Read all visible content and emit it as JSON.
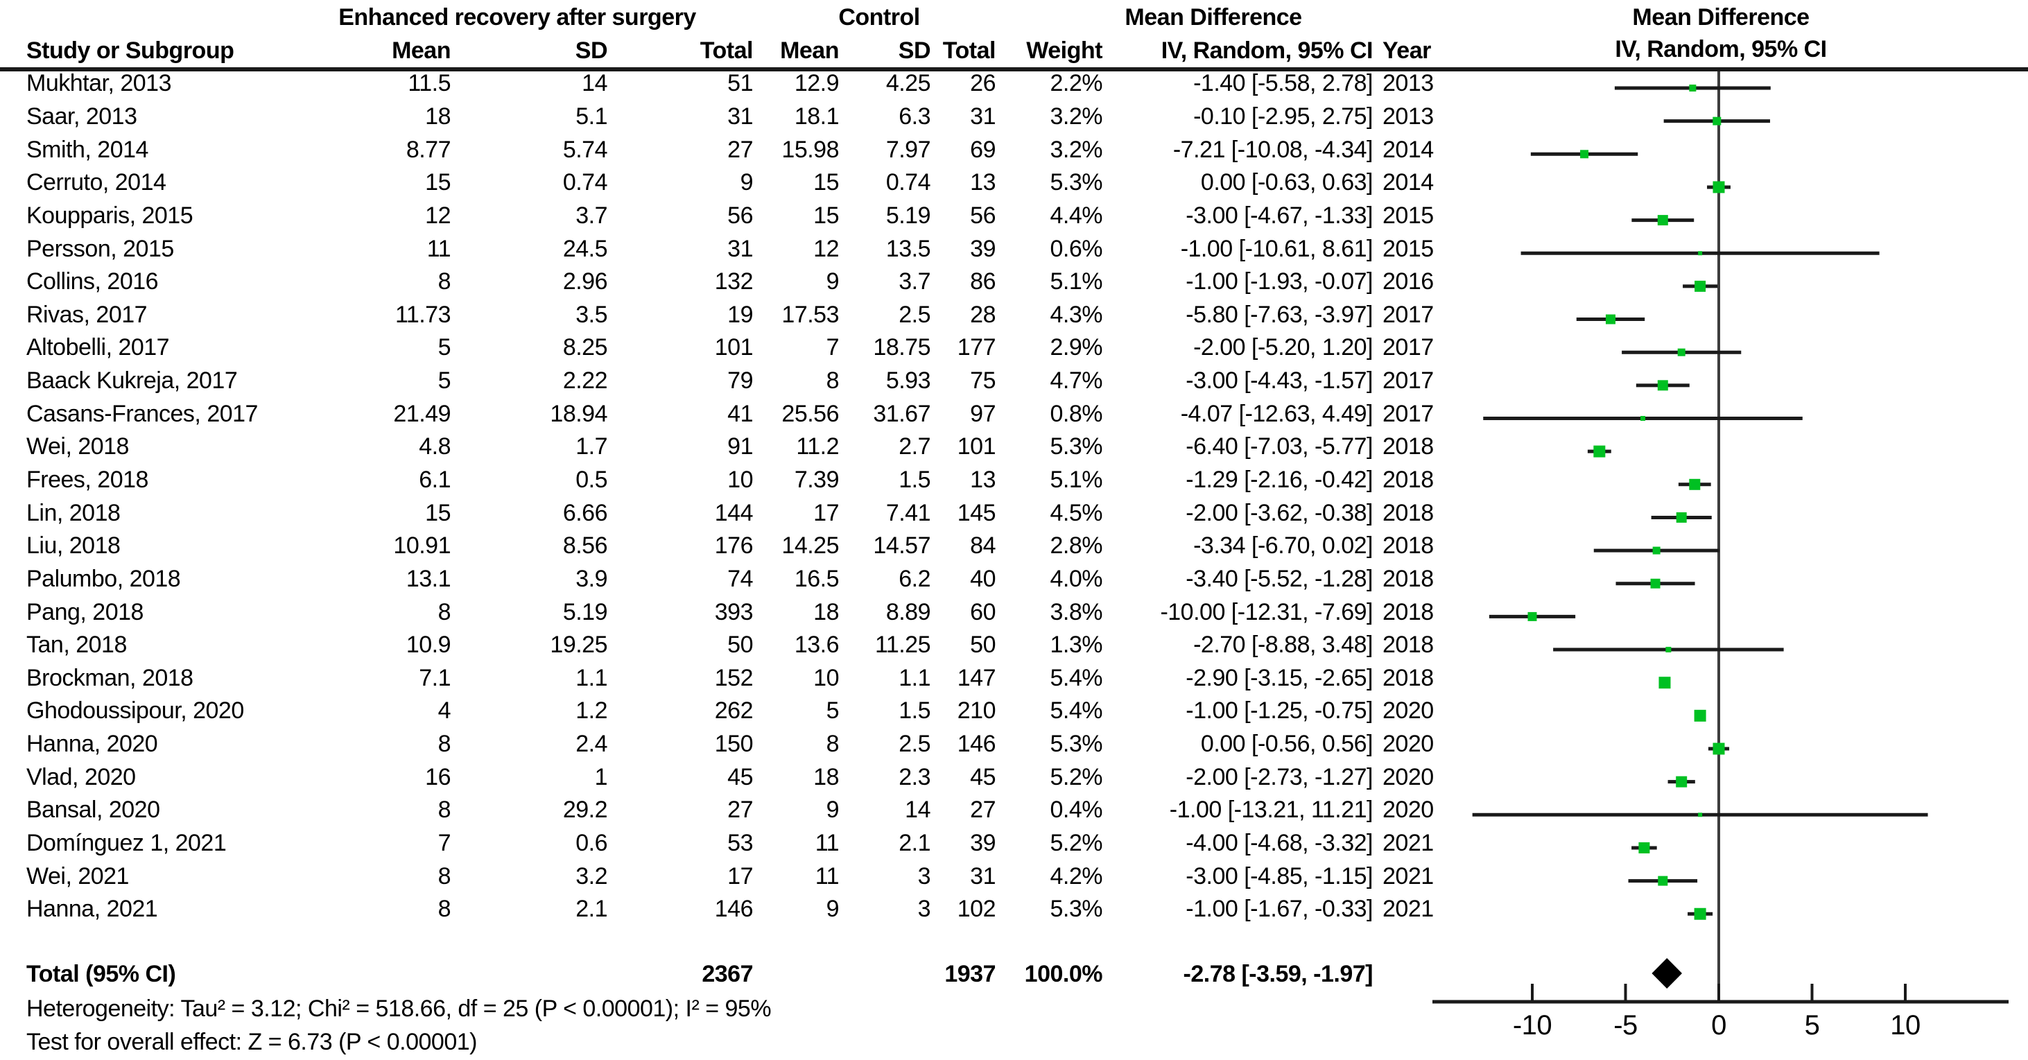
{
  "header": {
    "group_experimental": "Enhanced recovery after surgery",
    "group_control": "Control",
    "md_text_col_title": "Mean Difference",
    "md_plot_col_title": "Mean Difference",
    "md_plot_col_subtitle": "IV, Random, 95% CI",
    "col_study": "Study or Subgroup",
    "col_mean1": "Mean",
    "col_sd1": "SD",
    "col_total1": "Total",
    "col_mean2": "Mean",
    "col_sd2": "SD",
    "col_total2": "Total",
    "col_weight": "Weight",
    "col_ci": "IV, Random, 95% CI",
    "col_year": "Year"
  },
  "chart_data": {
    "type": "forest",
    "effect_measure": "Mean Difference, IV, Random, 95% CI",
    "axis": {
      "ticks": [
        -10,
        -5,
        0,
        5,
        10
      ],
      "zero_line": 0
    },
    "studies": [
      {
        "study": "Mukhtar, 2013",
        "mean1": "11.5",
        "sd1": "14",
        "total1": "51",
        "mean2": "12.9",
        "sd2": "4.25",
        "total2": "26",
        "weight": "2.2%",
        "ci_text": "-1.40 [-5.58, 2.78]",
        "year": "2013",
        "md": -1.4,
        "lo": -5.58,
        "hi": 2.78,
        "weight_pct": 2.2
      },
      {
        "study": "Saar, 2013",
        "mean1": "18",
        "sd1": "5.1",
        "total1": "31",
        "mean2": "18.1",
        "sd2": "6.3",
        "total2": "31",
        "weight": "3.2%",
        "ci_text": "-0.10 [-2.95, 2.75]",
        "year": "2013",
        "md": -0.1,
        "lo": -2.95,
        "hi": 2.75,
        "weight_pct": 3.2
      },
      {
        "study": "Smith, 2014",
        "mean1": "8.77",
        "sd1": "5.74",
        "total1": "27",
        "mean2": "15.98",
        "sd2": "7.97",
        "total2": "69",
        "weight": "3.2%",
        "ci_text": "-7.21 [-10.08, -4.34]",
        "year": "2014",
        "md": -7.21,
        "lo": -10.08,
        "hi": -4.34,
        "weight_pct": 3.2
      },
      {
        "study": "Cerruto, 2014",
        "mean1": "15",
        "sd1": "0.74",
        "total1": "9",
        "mean2": "15",
        "sd2": "0.74",
        "total2": "13",
        "weight": "5.3%",
        "ci_text": "0.00 [-0.63, 0.63]",
        "year": "2014",
        "md": 0.0,
        "lo": -0.63,
        "hi": 0.63,
        "weight_pct": 5.3
      },
      {
        "study": "Koupparis, 2015",
        "mean1": "12",
        "sd1": "3.7",
        "total1": "56",
        "mean2": "15",
        "sd2": "5.19",
        "total2": "56",
        "weight": "4.4%",
        "ci_text": "-3.00 [-4.67, -1.33]",
        "year": "2015",
        "md": -3.0,
        "lo": -4.67,
        "hi": -1.33,
        "weight_pct": 4.4
      },
      {
        "study": "Persson, 2015",
        "mean1": "11",
        "sd1": "24.5",
        "total1": "31",
        "mean2": "12",
        "sd2": "13.5",
        "total2": "39",
        "weight": "0.6%",
        "ci_text": "-1.00 [-10.61, 8.61]",
        "year": "2015",
        "md": -1.0,
        "lo": -10.61,
        "hi": 8.61,
        "weight_pct": 0.6
      },
      {
        "study": "Collins, 2016",
        "mean1": "8",
        "sd1": "2.96",
        "total1": "132",
        "mean2": "9",
        "sd2": "3.7",
        "total2": "86",
        "weight": "5.1%",
        "ci_text": "-1.00 [-1.93, -0.07]",
        "year": "2016",
        "md": -1.0,
        "lo": -1.93,
        "hi": -0.07,
        "weight_pct": 5.1
      },
      {
        "study": "Rivas, 2017",
        "mean1": "11.73",
        "sd1": "3.5",
        "total1": "19",
        "mean2": "17.53",
        "sd2": "2.5",
        "total2": "28",
        "weight": "4.3%",
        "ci_text": "-5.80 [-7.63, -3.97]",
        "year": "2017",
        "md": -5.8,
        "lo": -7.63,
        "hi": -3.97,
        "weight_pct": 4.3
      },
      {
        "study": "Altobelli, 2017",
        "mean1": "5",
        "sd1": "8.25",
        "total1": "101",
        "mean2": "7",
        "sd2": "18.75",
        "total2": "177",
        "weight": "2.9%",
        "ci_text": "-2.00 [-5.20, 1.20]",
        "year": "2017",
        "md": -2.0,
        "lo": -5.2,
        "hi": 1.2,
        "weight_pct": 2.9
      },
      {
        "study": "Baack Kukreja, 2017",
        "mean1": "5",
        "sd1": "2.22",
        "total1": "79",
        "mean2": "8",
        "sd2": "5.93",
        "total2": "75",
        "weight": "4.7%",
        "ci_text": "-3.00 [-4.43, -1.57]",
        "year": "2017",
        "md": -3.0,
        "lo": -4.43,
        "hi": -1.57,
        "weight_pct": 4.7
      },
      {
        "study": "Casans-Frances, 2017",
        "mean1": "21.49",
        "sd1": "18.94",
        "total1": "41",
        "mean2": "25.56",
        "sd2": "31.67",
        "total2": "97",
        "weight": "0.8%",
        "ci_text": "-4.07 [-12.63, 4.49]",
        "year": "2017",
        "md": -4.07,
        "lo": -12.63,
        "hi": 4.49,
        "weight_pct": 0.8
      },
      {
        "study": "Wei, 2018",
        "mean1": "4.8",
        "sd1": "1.7",
        "total1": "91",
        "mean2": "11.2",
        "sd2": "2.7",
        "total2": "101",
        "weight": "5.3%",
        "ci_text": "-6.40 [-7.03, -5.77]",
        "year": "2018",
        "md": -6.4,
        "lo": -7.03,
        "hi": -5.77,
        "weight_pct": 5.3
      },
      {
        "study": "Frees, 2018",
        "mean1": "6.1",
        "sd1": "0.5",
        "total1": "10",
        "mean2": "7.39",
        "sd2": "1.5",
        "total2": "13",
        "weight": "5.1%",
        "ci_text": "-1.29 [-2.16, -0.42]",
        "year": "2018",
        "md": -1.29,
        "lo": -2.16,
        "hi": -0.42,
        "weight_pct": 5.1
      },
      {
        "study": "Lin, 2018",
        "mean1": "15",
        "sd1": "6.66",
        "total1": "144",
        "mean2": "17",
        "sd2": "7.41",
        "total2": "145",
        "weight": "4.5%",
        "ci_text": "-2.00 [-3.62, -0.38]",
        "year": "2018",
        "md": -2.0,
        "lo": -3.62,
        "hi": -0.38,
        "weight_pct": 4.5
      },
      {
        "study": "Liu, 2018",
        "mean1": "10.91",
        "sd1": "8.56",
        "total1": "176",
        "mean2": "14.25",
        "sd2": "14.57",
        "total2": "84",
        "weight": "2.8%",
        "ci_text": "-3.34 [-6.70, 0.02]",
        "year": "2018",
        "md": -3.34,
        "lo": -6.7,
        "hi": 0.02,
        "weight_pct": 2.8
      },
      {
        "study": "Palumbo, 2018",
        "mean1": "13.1",
        "sd1": "3.9",
        "total1": "74",
        "mean2": "16.5",
        "sd2": "6.2",
        "total2": "40",
        "weight": "4.0%",
        "ci_text": "-3.40 [-5.52, -1.28]",
        "year": "2018",
        "md": -3.4,
        "lo": -5.52,
        "hi": -1.28,
        "weight_pct": 4.0
      },
      {
        "study": "Pang, 2018",
        "mean1": "8",
        "sd1": "5.19",
        "total1": "393",
        "mean2": "18",
        "sd2": "8.89",
        "total2": "60",
        "weight": "3.8%",
        "ci_text": "-10.00 [-12.31, -7.69]",
        "year": "2018",
        "md": -10.0,
        "lo": -12.31,
        "hi": -7.69,
        "weight_pct": 3.8
      },
      {
        "study": "Tan, 2018",
        "mean1": "10.9",
        "sd1": "19.25",
        "total1": "50",
        "mean2": "13.6",
        "sd2": "11.25",
        "total2": "50",
        "weight": "1.3%",
        "ci_text": "-2.70 [-8.88, 3.48]",
        "year": "2018",
        "md": -2.7,
        "lo": -8.88,
        "hi": 3.48,
        "weight_pct": 1.3
      },
      {
        "study": "Brockman, 2018",
        "mean1": "7.1",
        "sd1": "1.1",
        "total1": "152",
        "mean2": "10",
        "sd2": "1.1",
        "total2": "147",
        "weight": "5.4%",
        "ci_text": "-2.90 [-3.15, -2.65]",
        "year": "2018",
        "md": -2.9,
        "lo": -3.15,
        "hi": -2.65,
        "weight_pct": 5.4
      },
      {
        "study": "Ghodoussipour, 2020",
        "mean1": "4",
        "sd1": "1.2",
        "total1": "262",
        "mean2": "5",
        "sd2": "1.5",
        "total2": "210",
        "weight": "5.4%",
        "ci_text": "-1.00 [-1.25, -0.75]",
        "year": "2020",
        "md": -1.0,
        "lo": -1.25,
        "hi": -0.75,
        "weight_pct": 5.4
      },
      {
        "study": "Hanna, 2020",
        "mean1": "8",
        "sd1": "2.4",
        "total1": "150",
        "mean2": "8",
        "sd2": "2.5",
        "total2": "146",
        "weight": "5.3%",
        "ci_text": "0.00 [-0.56, 0.56]",
        "year": "2020",
        "md": 0.0,
        "lo": -0.56,
        "hi": 0.56,
        "weight_pct": 5.3
      },
      {
        "study": "Vlad, 2020",
        "mean1": "16",
        "sd1": "1",
        "total1": "45",
        "mean2": "18",
        "sd2": "2.3",
        "total2": "45",
        "weight": "5.2%",
        "ci_text": "-2.00 [-2.73, -1.27]",
        "year": "2020",
        "md": -2.0,
        "lo": -2.73,
        "hi": -1.27,
        "weight_pct": 5.2
      },
      {
        "study": "Bansal, 2020",
        "mean1": "8",
        "sd1": "29.2",
        "total1": "27",
        "mean2": "9",
        "sd2": "14",
        "total2": "27",
        "weight": "0.4%",
        "ci_text": "-1.00 [-13.21, 11.21]",
        "year": "2020",
        "md": -1.0,
        "lo": -13.21,
        "hi": 11.21,
        "weight_pct": 0.4
      },
      {
        "study": "Domínguez 1, 2021",
        "mean1": "7",
        "sd1": "0.6",
        "total1": "53",
        "mean2": "11",
        "sd2": "2.1",
        "total2": "39",
        "weight": "5.2%",
        "ci_text": "-4.00 [-4.68, -3.32]",
        "year": "2021",
        "md": -4.0,
        "lo": -4.68,
        "hi": -3.32,
        "weight_pct": 5.2
      },
      {
        "study": "Wei, 2021",
        "mean1": "8",
        "sd1": "3.2",
        "total1": "17",
        "mean2": "11",
        "sd2": "3",
        "total2": "31",
        "weight": "4.2%",
        "ci_text": "-3.00 [-4.85, -1.15]",
        "year": "2021",
        "md": -3.0,
        "lo": -4.85,
        "hi": -1.15,
        "weight_pct": 4.2
      },
      {
        "study": "Hanna, 2021",
        "mean1": "8",
        "sd1": "2.1",
        "total1": "146",
        "mean2": "9",
        "sd2": "3",
        "total2": "102",
        "weight": "5.3%",
        "ci_text": "-1.00 [-1.67, -0.33]",
        "year": "2021",
        "md": -1.0,
        "lo": -1.67,
        "hi": -0.33,
        "weight_pct": 5.3
      }
    ],
    "total": {
      "label": "Total (95% CI)",
      "total1": "2367",
      "total2": "1937",
      "weight": "100.0%",
      "ci_text": "-2.78 [-3.59, -1.97]",
      "md": -2.78,
      "lo": -3.59,
      "hi": -1.97
    }
  },
  "footer": {
    "heterogeneity": "Heterogeneity: Tau² = 3.12; Chi² = 518.66, df = 25 (P < 0.00001); I² = 95%",
    "overall_effect": "Test for overall effect: Z = 6.73 (P < 0.00001)"
  },
  "colors": {
    "marker_green": "#00c022",
    "ci_line": "#1a1a1a",
    "zero_line": "#3d3d3d",
    "diamond": "#000000"
  }
}
